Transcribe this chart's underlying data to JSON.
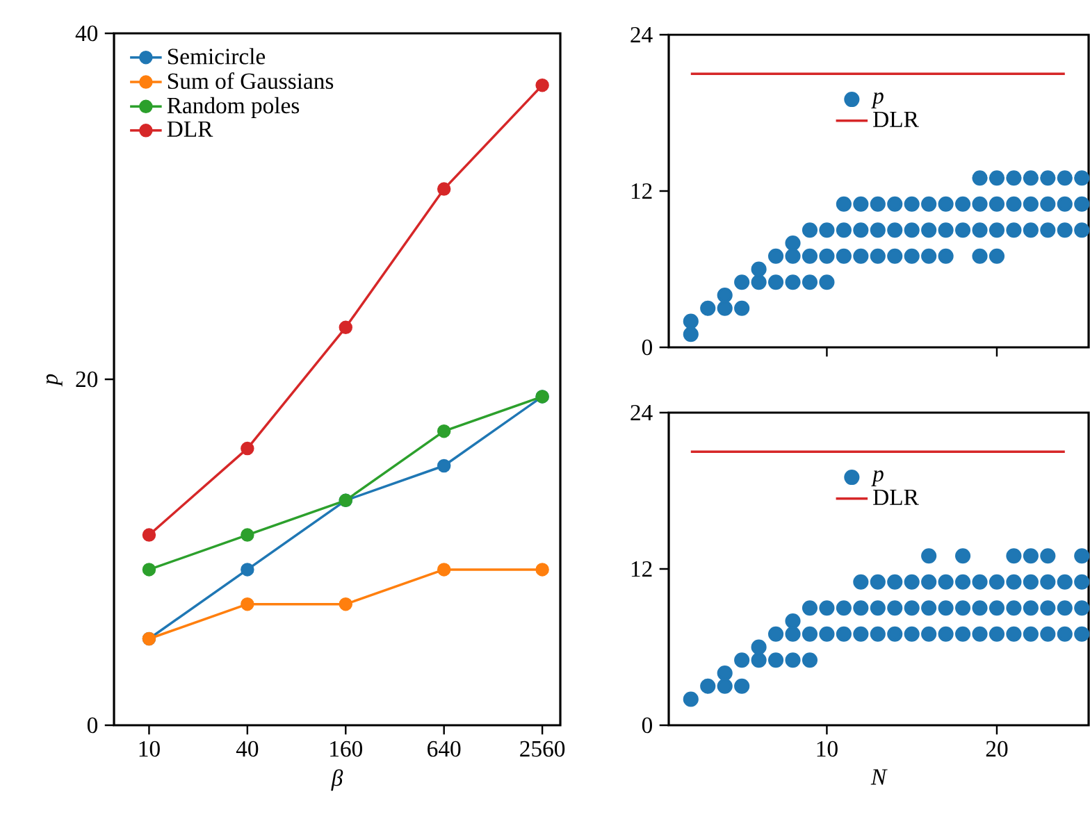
{
  "chart_data": [
    {
      "type": "line",
      "xlabel": "β",
      "ylabel": "p",
      "log": "x",
      "marker": "circle",
      "legend": "top left",
      "xlim": [
        6.1,
        3300
      ],
      "xticks": [
        10,
        40,
        160,
        640,
        2560
      ],
      "ylim": [
        0,
        40
      ],
      "yticks": [
        0,
        20,
        40
      ],
      "x": [
        10,
        40,
        160,
        640,
        2560
      ],
      "series": [
        {
          "name": "Semicircle",
          "color": "#1f77b4",
          "values": [
            5,
            9,
            13,
            15,
            19
          ]
        },
        {
          "name": "Sum of Gaussians",
          "color": "#ff7f0e",
          "values": [
            5,
            7,
            7,
            9,
            9
          ]
        },
        {
          "name": "Random poles",
          "color": "#2ca02c",
          "values": [
            9,
            11,
            13,
            17,
            19
          ]
        },
        {
          "name": "DLR",
          "color": "#d62728",
          "values": [
            11,
            16,
            23,
            31,
            37
          ]
        }
      ]
    },
    {
      "type": "scatter",
      "marker": "circle",
      "legend": "top",
      "tick_labels": "y",
      "xlim": [
        0.7,
        25.4
      ],
      "xticks": [
        10,
        20
      ],
      "ylim": [
        0,
        24
      ],
      "yticks": [
        0,
        12,
        24
      ],
      "series": [
        {
          "name": "p",
          "color": "#1f77b4",
          "x": [
            2,
            2,
            3,
            4,
            4,
            5,
            5,
            6,
            6,
            7,
            7,
            8,
            8,
            8,
            9,
            9,
            9,
            10,
            10,
            10,
            11,
            11,
            11,
            12,
            12,
            12,
            13,
            13,
            13,
            14,
            14,
            14,
            15,
            15,
            15,
            16,
            16,
            16,
            17,
            17,
            17,
            18,
            18,
            19,
            19,
            19,
            19,
            20,
            20,
            20,
            20,
            21,
            21,
            21,
            22,
            22,
            22,
            23,
            23,
            23,
            24,
            24,
            24,
            25,
            25,
            25
          ],
          "values": [
            1,
            2,
            3,
            3,
            4,
            3,
            5,
            5,
            6,
            5,
            7,
            5,
            7,
            8,
            5,
            7,
            9,
            5,
            7,
            9,
            7,
            9,
            11,
            7,
            9,
            11,
            7,
            9,
            11,
            7,
            9,
            11,
            7,
            9,
            11,
            7,
            9,
            11,
            7,
            9,
            11,
            9,
            11,
            7,
            9,
            11,
            13,
            7,
            9,
            11,
            13,
            9,
            11,
            13,
            9,
            11,
            13,
            9,
            11,
            13,
            9,
            11,
            13,
            9,
            11,
            13
          ]
        },
        {
          "name": "DLR",
          "type": "line",
          "marker": "none",
          "color": "#d62728",
          "x": [
            2,
            24
          ],
          "values": [
            21,
            21
          ]
        }
      ]
    },
    {
      "type": "scatter",
      "marker": "circle",
      "legend": "top",
      "xlabel": "N",
      "xlim": [
        0.7,
        25.4
      ],
      "xticks": [
        10,
        20
      ],
      "ylim": [
        0,
        24
      ],
      "yticks": [
        0,
        12,
        24
      ],
      "series": [
        {
          "name": "p",
          "color": "#1f77b4",
          "x": [
            2,
            3,
            4,
            4,
            5,
            5,
            6,
            6,
            7,
            7,
            8,
            8,
            8,
            9,
            9,
            9,
            10,
            10,
            11,
            11,
            12,
            12,
            12,
            13,
            13,
            13,
            14,
            14,
            14,
            15,
            15,
            15,
            16,
            16,
            16,
            16,
            17,
            17,
            17,
            18,
            18,
            18,
            18,
            19,
            19,
            19,
            20,
            20,
            20,
            21,
            21,
            21,
            21,
            22,
            22,
            22,
            22,
            23,
            23,
            23,
            23,
            24,
            24,
            24,
            25,
            25,
            25,
            25
          ],
          "values": [
            2,
            3,
            3,
            4,
            3,
            5,
            5,
            6,
            5,
            7,
            5,
            7,
            8,
            5,
            7,
            9,
            7,
            9,
            7,
            9,
            7,
            9,
            11,
            7,
            9,
            11,
            7,
            9,
            11,
            7,
            9,
            11,
            7,
            9,
            11,
            13,
            7,
            9,
            11,
            7,
            9,
            11,
            13,
            7,
            9,
            11,
            7,
            9,
            11,
            7,
            9,
            11,
            13,
            7,
            9,
            11,
            13,
            7,
            9,
            11,
            13,
            7,
            9,
            11,
            7,
            9,
            11,
            13
          ]
        },
        {
          "name": "DLR",
          "type": "line",
          "marker": "none",
          "color": "#d62728",
          "x": [
            2,
            24
          ],
          "values": [
            21,
            21
          ]
        }
      ]
    }
  ]
}
